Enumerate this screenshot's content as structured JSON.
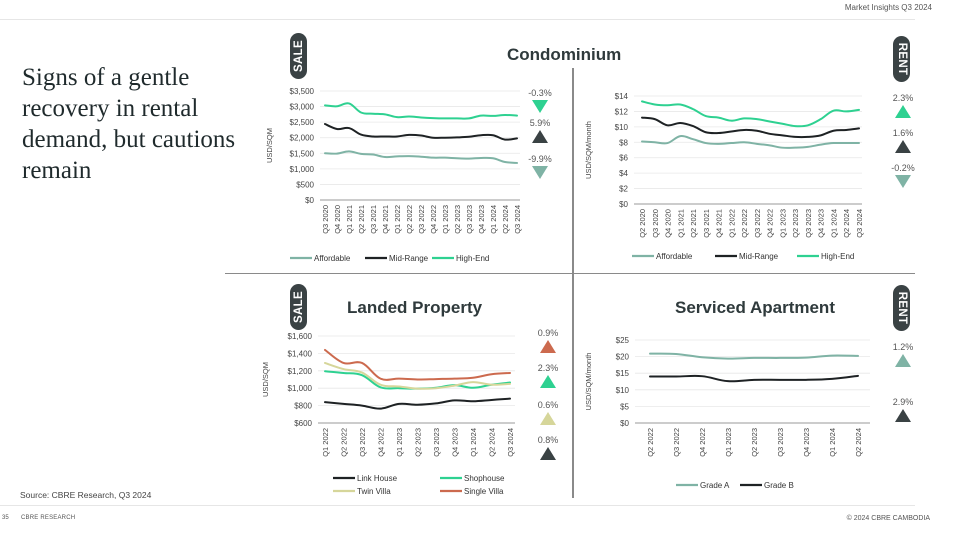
{
  "header": {
    "title": "Market Insights Q3 2024"
  },
  "headline": "Signs of a gentle recovery in rental demand, but cautions remain",
  "source": "Source: CBRE Research, Q3 2024",
  "footer": {
    "page_number": "35",
    "brand": "CBRE RESEARCH",
    "copyright": "© 2024 CBRE CAMBODIA"
  },
  "sections": {
    "condominium": {
      "title": "Condominium"
    },
    "landed": {
      "title": "Landed Property"
    },
    "serviced": {
      "title": "Serviced Apartment"
    }
  },
  "badges": {
    "sale": "SALE",
    "rent": "RENT"
  },
  "colors": {
    "affordable": "#7fb3a5",
    "midrange": "#1e2224",
    "highend": "#2ed191",
    "link_house": "#1e2224",
    "shophouse": "#2ed191",
    "twin_villa": "#d6d69a",
    "single_villa": "#cc6a4e",
    "grade_a": "#7fb3a5",
    "grade_b": "#1e2224",
    "arrow_dark": "#3a4244",
    "arrow_orange": "#cc6a4e",
    "arrow_green": "#2ed191",
    "arrow_sage": "#7fb3a5",
    "arrow_beige": "#d6d69a"
  },
  "chart_data": [
    {
      "id": "condo-sale",
      "type": "line",
      "title": "Condominium",
      "badge": "SALE",
      "ylabel": "USD/SQM",
      "xlabel": "",
      "ylim": [
        0,
        3500
      ],
      "yticks": [
        0,
        500,
        1000,
        1500,
        2000,
        2500,
        3000,
        3500
      ],
      "ytick_labels": [
        "$0",
        "$500",
        "$1,000",
        "$1,500",
        "$2,000",
        "$2,500",
        "$3,000",
        "$3,500"
      ],
      "grid": true,
      "legend": "bottom",
      "categories": [
        "Q3 2020",
        "Q4 2020",
        "Q1 2021",
        "Q2 2021",
        "Q3 2021",
        "Q4 2021",
        "Q1 2022",
        "Q2 2022",
        "Q3 2022",
        "Q4 2022",
        "Q1 2023",
        "Q2 2023",
        "Q3 2023",
        "Q4 2023",
        "Q1 2024",
        "Q2 2024",
        "Q3 2024"
      ],
      "series": [
        {
          "name": "Affordable",
          "color_key": "affordable",
          "values": [
            1500,
            1490,
            1560,
            1480,
            1460,
            1380,
            1400,
            1410,
            1390,
            1360,
            1360,
            1340,
            1330,
            1350,
            1340,
            1220,
            1190
          ]
        },
        {
          "name": "Mid-Range",
          "color_key": "midrange",
          "values": [
            2440,
            2280,
            2310,
            2100,
            2040,
            2040,
            2040,
            2090,
            2070,
            2000,
            2000,
            2010,
            2030,
            2080,
            2080,
            1940,
            1980
          ]
        },
        {
          "name": "High-End",
          "color_key": "highend",
          "values": [
            3040,
            3010,
            3100,
            2810,
            2770,
            2750,
            2660,
            2680,
            2650,
            2630,
            2620,
            2620,
            2620,
            2710,
            2700,
            2730,
            2710
          ]
        }
      ],
      "annotations": [
        {
          "label": "-0.3%",
          "direction": "down",
          "color_key": "arrow_green"
        },
        {
          "label": "5.9%",
          "direction": "up",
          "color_key": "arrow_dark"
        },
        {
          "label": "-9.9%",
          "direction": "down",
          "color_key": "arrow_sage"
        }
      ]
    },
    {
      "id": "condo-rent",
      "type": "line",
      "title": "Condominium",
      "badge": "RENT",
      "ylabel": "USD/SQM/month",
      "xlabel": "",
      "ylim": [
        0,
        14
      ],
      "yticks": [
        0,
        2,
        4,
        6,
        8,
        10,
        12,
        14
      ],
      "ytick_labels": [
        "$0",
        "$2",
        "$4",
        "$6",
        "$8",
        "$10",
        "$12",
        "$14"
      ],
      "grid": true,
      "legend": "bottom",
      "categories": [
        "Q2 2020",
        "Q3 2020",
        "Q4 2020",
        "Q1 2021",
        "Q2 2021",
        "Q3 2021",
        "Q4 2021",
        "Q1 2022",
        "Q2 2022",
        "Q3 2022",
        "Q4 2022",
        "Q1 2023",
        "Q2 2023",
        "Q3 2023",
        "Q4 2023",
        "Q1 2024",
        "Q2 2024",
        "Q3 2024"
      ],
      "series": [
        {
          "name": "Affordable",
          "color_key": "affordable",
          "values": [
            8.1,
            8.0,
            7.9,
            8.8,
            8.4,
            7.9,
            7.8,
            7.9,
            8.0,
            7.8,
            7.6,
            7.3,
            7.3,
            7.4,
            7.7,
            7.9,
            7.9,
            7.9
          ]
        },
        {
          "name": "Mid-Range",
          "color_key": "midrange",
          "values": [
            11.2,
            11.0,
            10.2,
            10.5,
            10.1,
            9.3,
            9.2,
            9.4,
            9.6,
            9.5,
            9.1,
            8.9,
            8.7,
            8.7,
            8.9,
            9.5,
            9.6,
            9.8
          ]
        },
        {
          "name": "High-End",
          "color_key": "highend",
          "values": [
            13.3,
            12.9,
            12.8,
            12.9,
            12.3,
            11.4,
            11.2,
            10.8,
            11.1,
            11.0,
            10.7,
            10.4,
            10.1,
            10.2,
            11.0,
            12.1,
            12.0,
            12.2
          ]
        }
      ],
      "annotations": [
        {
          "label": "2.3%",
          "direction": "up",
          "color_key": "arrow_green"
        },
        {
          "label": "1.6%",
          "direction": "up",
          "color_key": "arrow_dark"
        },
        {
          "label": "-0.2%",
          "direction": "down",
          "color_key": "arrow_sage"
        }
      ]
    },
    {
      "id": "landed-sale",
      "type": "line",
      "title": "Landed Property",
      "badge": "SALE",
      "ylabel": "USD/SQM",
      "xlabel": "",
      "ylim": [
        600,
        1600
      ],
      "yticks": [
        600,
        800,
        1000,
        1200,
        1400,
        1600
      ],
      "ytick_labels": [
        "$600",
        "$800",
        "$1,000",
        "$1,200",
        "$1,400",
        "$1,600"
      ],
      "grid": true,
      "legend": "bottom",
      "categories": [
        "Q1 2022",
        "Q2 2022",
        "Q3 2022",
        "Q4 2022",
        "Q1 2023",
        "Q2 2023",
        "Q3 2023",
        "Q4 2023",
        "Q1 2024",
        "Q2 2024",
        "Q3 2024"
      ],
      "series": [
        {
          "name": "Link House",
          "color_key": "link_house",
          "values": [
            840,
            820,
            800,
            765,
            820,
            810,
            825,
            860,
            850,
            865,
            880
          ]
        },
        {
          "name": "Shophouse",
          "color_key": "shophouse",
          "values": [
            1195,
            1175,
            1150,
            1010,
            1000,
            995,
            1005,
            1035,
            1005,
            1040,
            1065
          ]
        },
        {
          "name": "Twin Villa",
          "color_key": "twin_villa",
          "values": [
            1290,
            1220,
            1180,
            1040,
            1020,
            995,
            1000,
            1030,
            1070,
            1040,
            1050
          ]
        },
        {
          "name": "Single Villa",
          "color_key": "single_villa",
          "values": [
            1440,
            1290,
            1290,
            1110,
            1110,
            1100,
            1105,
            1110,
            1120,
            1160,
            1175
          ]
        }
      ],
      "annotations": [
        {
          "label": "0.9%",
          "direction": "up",
          "color_key": "arrow_orange"
        },
        {
          "label": "2.3%",
          "direction": "up",
          "color_key": "arrow_green"
        },
        {
          "label": "0.6%",
          "direction": "up",
          "color_key": "arrow_beige"
        },
        {
          "label": "0.8%",
          "direction": "up",
          "color_key": "arrow_dark"
        }
      ]
    },
    {
      "id": "serviced-rent",
      "type": "line",
      "title": "Serviced Apartment",
      "badge": "RENT",
      "ylabel": "USD/SQM/month",
      "xlabel": "",
      "ylim": [
        0,
        25
      ],
      "yticks": [
        0,
        5,
        10,
        15,
        20,
        25
      ],
      "ytick_labels": [
        "$0",
        "$5",
        "$10",
        "$15",
        "$20",
        "$25"
      ],
      "grid": true,
      "legend": "bottom",
      "categories": [
        "Q2 2022",
        "Q3 2022",
        "Q4 2022",
        "Q1 2023",
        "Q2 2023",
        "Q3 2023",
        "Q4 2023",
        "Q1 2024",
        "Q2 2024"
      ],
      "series": [
        {
          "name": "Grade A",
          "color_key": "grade_a",
          "values": [
            20.9,
            20.8,
            19.8,
            19.4,
            19.6,
            19.6,
            19.7,
            20.3,
            20.2
          ]
        },
        {
          "name": "Grade B",
          "color_key": "grade_b",
          "values": [
            14.0,
            14.0,
            14.1,
            12.6,
            13.0,
            13.0,
            13.0,
            13.3,
            14.2
          ]
        }
      ],
      "annotations": [
        {
          "label": "1.2%",
          "direction": "up",
          "color_key": "arrow_sage"
        },
        {
          "label": "2.9%",
          "direction": "up",
          "color_key": "arrow_dark"
        }
      ]
    }
  ]
}
